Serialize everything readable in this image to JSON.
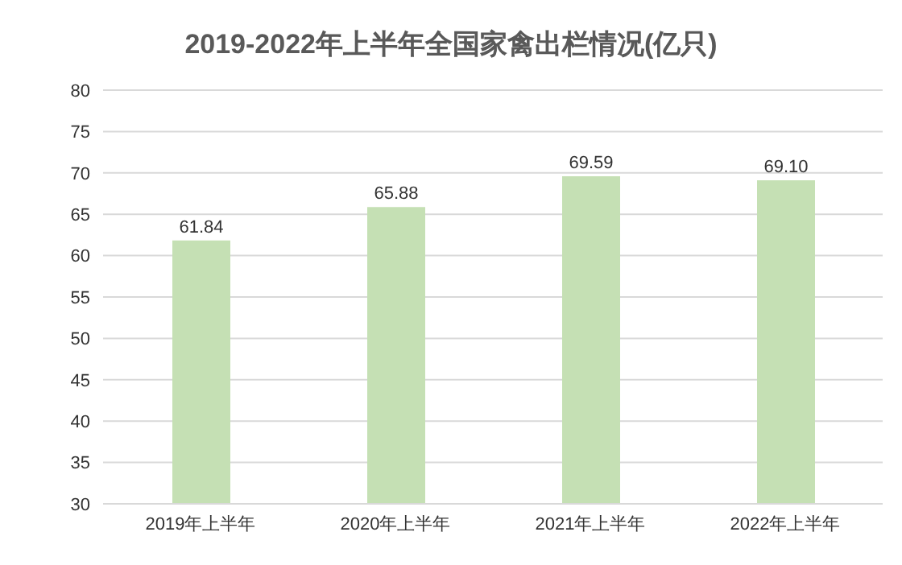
{
  "chart_data": {
    "type": "bar",
    "title": "2019-2022年上半年全国家禽出栏情况(亿只)",
    "categories": [
      "2019年上半年",
      "2020年上半年",
      "2021年上半年",
      "2022年上半年"
    ],
    "values": [
      61.84,
      65.88,
      69.59,
      69.1
    ],
    "value_labels": [
      "61.84",
      "65.88",
      "69.59",
      "69.10"
    ],
    "color": "#c5e0b4",
    "ylim": [
      30,
      80
    ],
    "yticks": [
      30,
      35,
      40,
      45,
      50,
      55,
      60,
      65,
      70,
      75,
      80
    ],
    "grid": "y"
  }
}
